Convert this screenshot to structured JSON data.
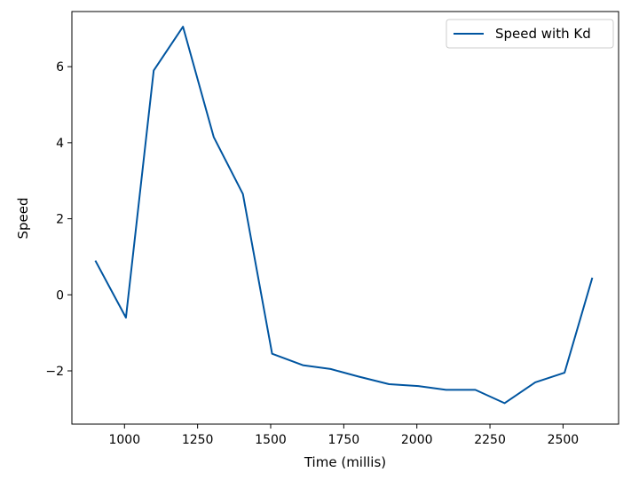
{
  "chart_data": {
    "type": "line",
    "title": "",
    "xlabel": "Time (millis)",
    "ylabel": "Speed",
    "xlim": [
      820,
      2690
    ],
    "ylim": [
      -3.4,
      7.45
    ],
    "xticks": [
      1000,
      1250,
      1500,
      1750,
      2000,
      2250,
      2500
    ],
    "yticks": [
      -2,
      0,
      2,
      4,
      6
    ],
    "grid": false,
    "legend": "top-right",
    "series": [
      {
        "name": "Speed with Kd",
        "color": "#0055a0",
        "x": [
          900,
          1005,
          1100,
          1200,
          1305,
          1405,
          1505,
          1610,
          1705,
          1800,
          1905,
          2005,
          2100,
          2200,
          2300,
          2405,
          2505,
          2600
        ],
        "y": [
          0.9,
          -0.6,
          5.9,
          7.05,
          4.15,
          2.65,
          -1.55,
          -1.85,
          -1.95,
          -2.15,
          -2.35,
          -2.4,
          -2.5,
          -2.5,
          -2.85,
          -2.3,
          -2.05,
          0.45
        ]
      }
    ]
  }
}
